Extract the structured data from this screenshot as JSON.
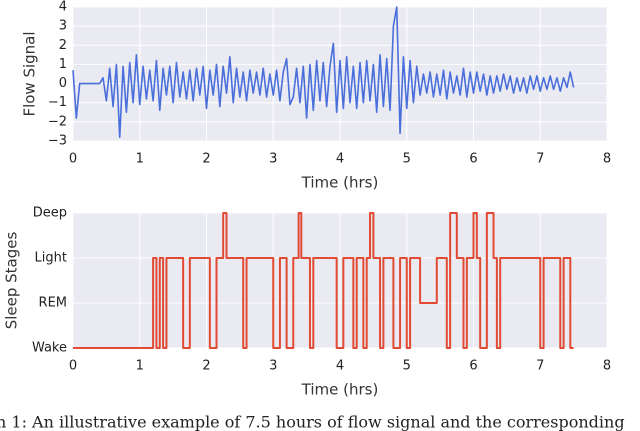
{
  "caption": "n 1: An illustrative example of 7.5 hours of flow signal and the corresponding",
  "chart_data": [
    {
      "type": "line",
      "xlabel": "Time (hrs)",
      "ylabel": "Flow Signal",
      "xlim": [
        0,
        8
      ],
      "ylim": [
        -3,
        4
      ],
      "xticks": [
        0,
        1,
        2,
        3,
        4,
        5,
        6,
        7,
        8
      ],
      "yticks": [
        {
          "value": -3,
          "label": "−3"
        },
        {
          "value": -2,
          "label": "−2"
        },
        {
          "value": -1,
          "label": "−1"
        },
        0,
        1,
        2,
        3,
        4
      ],
      "grid": true,
      "background": "#eaeaf2",
      "x": [
        0,
        0.05,
        0.1,
        0.15,
        0.2,
        0.25,
        0.3,
        0.35,
        0.4,
        0.45,
        0.5,
        0.55,
        0.6,
        0.65,
        0.7,
        0.75,
        0.8,
        0.85,
        0.9,
        0.95,
        1,
        1.05,
        1.1,
        1.15,
        1.2,
        1.25,
        1.3,
        1.35,
        1.4,
        1.45,
        1.5,
        1.55,
        1.6,
        1.65,
        1.7,
        1.75,
        1.8,
        1.85,
        1.9,
        1.95,
        2,
        2.05,
        2.1,
        2.15,
        2.2,
        2.25,
        2.3,
        2.35,
        2.4,
        2.45,
        2.5,
        2.55,
        2.6,
        2.65,
        2.7,
        2.75,
        2.8,
        2.85,
        2.9,
        2.95,
        3,
        3.05,
        3.1,
        3.15,
        3.2,
        3.25,
        3.3,
        3.35,
        3.4,
        3.45,
        3.5,
        3.55,
        3.6,
        3.65,
        3.7,
        3.75,
        3.8,
        3.85,
        3.9,
        3.95,
        4,
        4.05,
        4.1,
        4.15,
        4.2,
        4.25,
        4.3,
        4.35,
        4.4,
        4.45,
        4.5,
        4.55,
        4.6,
        4.65,
        4.7,
        4.75,
        4.8,
        4.85,
        4.9,
        4.95,
        5,
        5.05,
        5.1,
        5.15,
        5.2,
        5.25,
        5.3,
        5.35,
        5.4,
        5.45,
        5.5,
        5.55,
        5.6,
        5.65,
        5.7,
        5.75,
        5.8,
        5.85,
        5.9,
        5.95,
        6,
        6.05,
        6.1,
        6.15,
        6.2,
        6.25,
        6.3,
        6.35,
        6.4,
        6.45,
        6.5,
        6.55,
        6.6,
        6.65,
        6.7,
        6.75,
        6.8,
        6.85,
        6.9,
        6.95,
        7,
        7.05,
        7.1,
        7.15,
        7.2,
        7.25,
        7.3,
        7.35,
        7.4,
        7.45,
        7.5
      ],
      "series": [
        {
          "color": "#4a6fdb",
          "values": [
            0.7,
            -1.8,
            0,
            0,
            0,
            0,
            0,
            0,
            0,
            0.3,
            -0.9,
            0.8,
            -1.2,
            1.0,
            -2.8,
            0.9,
            -1.5,
            1.1,
            -1.0,
            1.5,
            -1.1,
            0.9,
            -0.8,
            0.7,
            -0.9,
            1.2,
            -1.4,
            0.8,
            -0.6,
            0.9,
            -1.0,
            1.1,
            -0.7,
            0.6,
            -0.8,
            0.7,
            -0.9,
            0.8,
            -0.6,
            0.9,
            -1.3,
            0.7,
            -0.6,
            1.0,
            -1.2,
            0.9,
            -0.5,
            1.4,
            -1.0,
            0.8,
            -0.7,
            0.6,
            -0.9,
            0.7,
            -0.5,
            0.6,
            -0.6,
            0.8,
            -0.7,
            0.5,
            -0.6,
            0.7,
            -0.9,
            0.6,
            1.3,
            -1.1,
            -0.7,
            0.8,
            -1.0,
            0.9,
            -1.8,
            1.0,
            -1.4,
            1.2,
            -0.9,
            1.1,
            -1.2,
            0.9,
            2.1,
            -1.5,
            1.2,
            -1.3,
            1.4,
            -1.0,
            0.9,
            -1.3,
            1.1,
            -1.0,
            1.2,
            -0.9,
            1.0,
            -1.5,
            1.5,
            -1.2,
            1.3,
            -1.4,
            3.0,
            4.0,
            -2.6,
            1.4,
            -1.3,
            1.2,
            -1.0,
            0.9,
            -0.6,
            0.5,
            -0.5,
            0.6,
            -0.7,
            0.5,
            -0.6,
            0.7,
            -0.8,
            0.6,
            -0.5,
            0.4,
            -0.6,
            0.8,
            -0.7,
            0.6,
            -0.5,
            0.6,
            -0.4,
            0.5,
            -0.6,
            0.4,
            -0.5,
            0.4,
            -0.4,
            0.5,
            -0.3,
            0.4,
            -0.5,
            0.3,
            -0.4,
            0.3,
            -0.5,
            0.4,
            -0.3,
            0.4,
            -0.4,
            0.3,
            -0.3,
            0.4,
            -0.3,
            0.3,
            -0.4,
            0.3,
            -0.2,
            0.6,
            -0.2
          ]
        }
      ]
    },
    {
      "type": "step",
      "xlabel": "Time (hrs)",
      "ylabel": "Sleep Stages",
      "xlim": [
        0,
        8
      ],
      "ylim": [
        0,
        3
      ],
      "xticks": [
        0,
        1,
        2,
        3,
        4,
        5,
        6,
        7,
        8
      ],
      "yticks": [
        {
          "value": 0,
          "label": "Wake"
        },
        {
          "value": 1,
          "label": "REM"
        },
        {
          "value": 2,
          "label": "Light"
        },
        {
          "value": 3,
          "label": "Deep"
        }
      ],
      "grid": true,
      "background": "#eaeaf2",
      "x": [
        0,
        1.2,
        1.25,
        1.3,
        1.35,
        1.4,
        1.65,
        1.75,
        2.05,
        2.15,
        2.25,
        2.3,
        2.55,
        2.6,
        3.0,
        3.1,
        3.2,
        3.3,
        3.38,
        3.42,
        3.55,
        3.6,
        3.95,
        4.05,
        4.2,
        4.25,
        4.35,
        4.4,
        4.45,
        4.5,
        4.6,
        4.65,
        4.8,
        4.9,
        5.0,
        5.05,
        5.2,
        5.45,
        5.6,
        5.65,
        5.75,
        5.85,
        5.9,
        6.0,
        6.05,
        6.1,
        6.2,
        6.3,
        6.35,
        6.4,
        7.0,
        7.05,
        7.3,
        7.35,
        7.45,
        7.5
      ],
      "series": [
        {
          "color": "#e24a33",
          "values": [
            0,
            2,
            0,
            2,
            0,
            2,
            0,
            2,
            0,
            2,
            3,
            2,
            0,
            2,
            0,
            2,
            0,
            2,
            3,
            2,
            0,
            2,
            0,
            2,
            0,
            2,
            0,
            2,
            3,
            2,
            0,
            2,
            0,
            2,
            0,
            2,
            1,
            2,
            0,
            3,
            2,
            0,
            2,
            3,
            2,
            0,
            3,
            2,
            0,
            2,
            0,
            2,
            0,
            2,
            0,
            0
          ]
        }
      ]
    }
  ]
}
